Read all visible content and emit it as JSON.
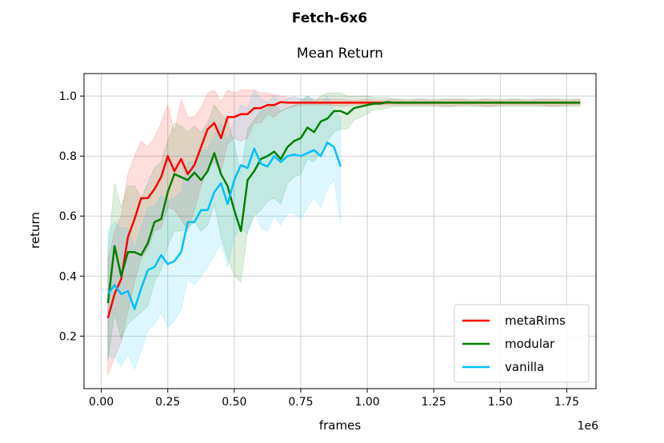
{
  "chart_data": {
    "type": "line",
    "suptitle": "Fetch-6x6",
    "title": "Mean Return",
    "xlabel": "frames",
    "ylabel": "return",
    "x_scale_label": "1e6",
    "xlim": [
      -0.065,
      1.86
    ],
    "ylim": [
      0.025,
      1.075
    ],
    "xticks": [
      0.0,
      0.25,
      0.5,
      0.75,
      1.0,
      1.25,
      1.5,
      1.75
    ],
    "xtick_labels": [
      "0.00",
      "0.25",
      "0.50",
      "0.75",
      "1.00",
      "1.25",
      "1.50",
      "1.75"
    ],
    "yticks": [
      0.2,
      0.4,
      0.6,
      0.8,
      1.0
    ],
    "ytick_labels": [
      "0.2",
      "0.4",
      "0.6",
      "0.8",
      "1.0"
    ],
    "grid": true,
    "legend_position": "bottom-right",
    "series": [
      {
        "name": "metaRims",
        "color": "#ff0000",
        "x": [
          0.025,
          0.05,
          0.075,
          0.1,
          0.125,
          0.15,
          0.175,
          0.2,
          0.225,
          0.25,
          0.275,
          0.3,
          0.325,
          0.35,
          0.375,
          0.4,
          0.425,
          0.45,
          0.475,
          0.5,
          0.525,
          0.55,
          0.575,
          0.6,
          0.625,
          0.65,
          0.675,
          0.7,
          0.75,
          0.8,
          0.85,
          0.9,
          0.95,
          1.0,
          1.05,
          1.1,
          1.15,
          1.2,
          1.25,
          1.3,
          1.35,
          1.4,
          1.45,
          1.5,
          1.55,
          1.6,
          1.65,
          1.7,
          1.75,
          1.8
        ],
        "y": [
          0.26,
          0.34,
          0.39,
          0.53,
          0.59,
          0.66,
          0.66,
          0.69,
          0.73,
          0.8,
          0.75,
          0.79,
          0.74,
          0.77,
          0.83,
          0.89,
          0.91,
          0.86,
          0.93,
          0.93,
          0.94,
          0.94,
          0.96,
          0.96,
          0.97,
          0.97,
          0.98,
          0.978,
          0.978,
          0.978,
          0.978,
          0.978,
          0.978,
          0.978,
          0.978,
          0.978,
          0.978,
          0.978,
          0.978,
          0.978,
          0.978,
          0.978,
          0.978,
          0.978,
          0.978,
          0.978,
          0.978,
          0.978,
          0.978,
          0.978
        ],
        "lower": [
          0.07,
          0.13,
          0.18,
          0.28,
          0.38,
          0.46,
          0.49,
          0.55,
          0.56,
          0.63,
          0.62,
          0.59,
          0.55,
          0.62,
          0.7,
          0.76,
          0.78,
          0.75,
          0.84,
          0.86,
          0.85,
          0.86,
          0.91,
          0.91,
          0.94,
          0.93,
          0.95,
          0.96,
          0.97,
          0.97,
          0.97,
          0.965,
          0.97,
          0.97,
          0.97,
          0.97,
          0.97,
          0.97,
          0.97,
          0.965,
          0.97,
          0.97,
          0.965,
          0.97,
          0.97,
          0.97,
          0.97,
          0.965,
          0.97,
          0.97
        ],
        "upper": [
          0.45,
          0.55,
          0.6,
          0.74,
          0.8,
          0.85,
          0.83,
          0.86,
          0.91,
          0.97,
          0.88,
          0.99,
          0.93,
          0.93,
          0.96,
          1.01,
          1.02,
          0.98,
          1.02,
          1.01,
          1.02,
          1.02,
          1.02,
          1.01,
          1.01,
          1.005,
          1.0,
          0.995,
          0.99,
          0.99,
          0.99,
          0.99,
          0.985,
          0.99,
          0.985,
          0.99,
          0.985,
          0.99,
          0.985,
          0.99,
          0.99,
          0.985,
          0.99,
          0.985,
          0.99,
          0.985,
          0.99,
          0.99,
          0.985,
          0.99
        ]
      },
      {
        "name": "modular",
        "color": "#008000",
        "x": [
          0.025,
          0.05,
          0.075,
          0.1,
          0.125,
          0.15,
          0.175,
          0.2,
          0.225,
          0.25,
          0.275,
          0.3,
          0.325,
          0.35,
          0.375,
          0.4,
          0.425,
          0.45,
          0.475,
          0.5,
          0.525,
          0.55,
          0.575,
          0.6,
          0.625,
          0.65,
          0.675,
          0.7,
          0.725,
          0.75,
          0.775,
          0.8,
          0.825,
          0.85,
          0.875,
          0.9,
          0.925,
          0.95,
          0.975,
          1.0,
          1.025,
          1.05,
          1.075,
          1.1,
          1.15,
          1.2,
          1.25,
          1.3,
          1.35,
          1.4,
          1.45,
          1.5,
          1.55,
          1.6,
          1.65,
          1.7,
          1.75,
          1.8
        ],
        "y": [
          0.31,
          0.5,
          0.4,
          0.48,
          0.48,
          0.47,
          0.51,
          0.58,
          0.59,
          0.68,
          0.74,
          0.73,
          0.72,
          0.745,
          0.72,
          0.75,
          0.81,
          0.74,
          0.7,
          0.62,
          0.55,
          0.72,
          0.75,
          0.79,
          0.8,
          0.815,
          0.79,
          0.83,
          0.85,
          0.86,
          0.895,
          0.88,
          0.915,
          0.925,
          0.95,
          0.95,
          0.94,
          0.96,
          0.965,
          0.97,
          0.975,
          0.975,
          0.98,
          0.978,
          0.978,
          0.978,
          0.978,
          0.978,
          0.978,
          0.978,
          0.978,
          0.978,
          0.978,
          0.978,
          0.978,
          0.978,
          0.978,
          0.978
        ],
        "lower": [
          0.12,
          0.28,
          0.19,
          0.24,
          0.26,
          0.28,
          0.3,
          0.38,
          0.42,
          0.5,
          0.55,
          0.55,
          0.56,
          0.58,
          0.55,
          0.57,
          0.64,
          0.53,
          0.46,
          0.4,
          0.38,
          0.55,
          0.6,
          0.62,
          0.65,
          0.66,
          0.64,
          0.71,
          0.73,
          0.74,
          0.79,
          0.78,
          0.82,
          0.85,
          0.88,
          0.89,
          0.89,
          0.92,
          0.93,
          0.94,
          0.955,
          0.955,
          0.96,
          0.965,
          0.965,
          0.965,
          0.965,
          0.965,
          0.965,
          0.965,
          0.965,
          0.965,
          0.965,
          0.965,
          0.965,
          0.965,
          0.965,
          0.965
        ],
        "upper": [
          0.48,
          0.71,
          0.63,
          0.7,
          0.7,
          0.66,
          0.71,
          0.76,
          0.78,
          0.85,
          0.91,
          0.9,
          0.88,
          0.9,
          0.88,
          0.91,
          0.97,
          0.94,
          0.92,
          0.84,
          0.74,
          0.89,
          0.92,
          0.95,
          0.96,
          0.97,
          0.95,
          0.96,
          0.97,
          0.98,
          1.0,
          0.98,
          1.0,
          1.01,
          1.01,
          1.01,
          1.0,
          1.0,
          1.0,
          1.0,
          0.995,
          0.995,
          0.995,
          0.99,
          0.99,
          0.99,
          0.99,
          0.99,
          0.99,
          0.99,
          0.99,
          0.99,
          0.99,
          0.99,
          0.99,
          0.99,
          0.99,
          0.99
        ]
      },
      {
        "name": "vanilla",
        "color": "#00bfff",
        "x": [
          0.025,
          0.05,
          0.075,
          0.1,
          0.125,
          0.15,
          0.175,
          0.2,
          0.225,
          0.25,
          0.275,
          0.3,
          0.325,
          0.35,
          0.375,
          0.4,
          0.425,
          0.45,
          0.475,
          0.5,
          0.525,
          0.55,
          0.575,
          0.6,
          0.625,
          0.65,
          0.675,
          0.7,
          0.725,
          0.75,
          0.775,
          0.8,
          0.825,
          0.85,
          0.875,
          0.9
        ],
        "y": [
          0.34,
          0.37,
          0.34,
          0.35,
          0.29,
          0.36,
          0.42,
          0.43,
          0.47,
          0.44,
          0.45,
          0.48,
          0.58,
          0.58,
          0.62,
          0.62,
          0.68,
          0.71,
          0.64,
          0.72,
          0.77,
          0.76,
          0.825,
          0.775,
          0.765,
          0.8,
          0.78,
          0.8,
          0.805,
          0.8,
          0.81,
          0.82,
          0.8,
          0.845,
          0.83,
          0.765
        ],
        "lower": [
          0.13,
          0.13,
          0.1,
          0.14,
          0.09,
          0.15,
          0.22,
          0.24,
          0.28,
          0.23,
          0.25,
          0.29,
          0.39,
          0.37,
          0.4,
          0.43,
          0.47,
          0.51,
          0.43,
          0.53,
          0.56,
          0.54,
          0.62,
          0.56,
          0.55,
          0.6,
          0.57,
          0.61,
          0.61,
          0.59,
          0.63,
          0.66,
          0.63,
          0.69,
          0.72,
          0.58
        ],
        "upper": [
          0.55,
          0.58,
          0.56,
          0.56,
          0.49,
          0.56,
          0.63,
          0.63,
          0.67,
          0.65,
          0.66,
          0.68,
          0.78,
          0.78,
          0.82,
          0.82,
          0.87,
          0.91,
          0.85,
          0.92,
          0.97,
          0.96,
          1.02,
          0.99,
          0.98,
          1.0,
          0.98,
          0.99,
          1.0,
          0.99,
          1.0,
          0.99,
          0.97,
          1.0,
          0.95,
          0.93
        ]
      }
    ]
  }
}
